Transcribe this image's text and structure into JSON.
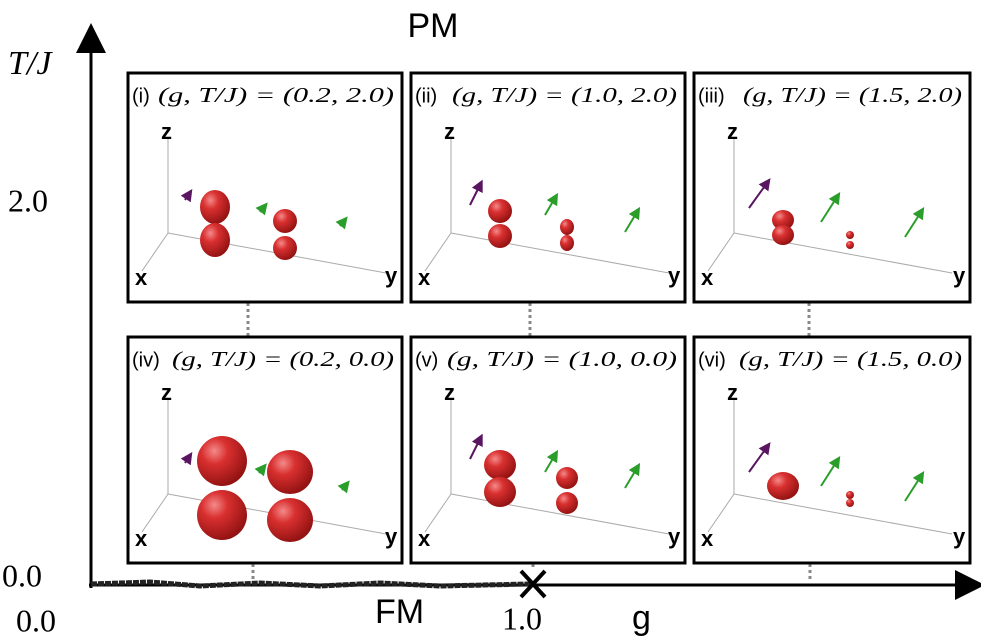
{
  "axes": {
    "top_label": "PM",
    "bottom_label": "FM",
    "y_label": "T/J",
    "x_label": "g",
    "y_ticks": [
      "2.0",
      "0.0"
    ],
    "x_ticks": [
      "0.0",
      "1.0"
    ]
  },
  "axis_labels_3d": {
    "z": "z",
    "x": "x",
    "y": "y"
  },
  "panels": [
    {
      "id": "(i)",
      "params": "(g, T/J) = (0.2, 2.0)"
    },
    {
      "id": "(ii)",
      "params": "(g, T/J) = (1.0, 2.0)"
    },
    {
      "id": "(iii)",
      "params": "(g, T/J) = (1.5, 2.0)"
    },
    {
      "id": "(iv)",
      "params": "(g, T/J) = (0.2, 0.0)"
    },
    {
      "id": "(v)",
      "params": "(g, T/J) = (1.0, 0.0)"
    },
    {
      "id": "(vi)",
      "params": "(g, T/J) = (1.5, 0.0)"
    }
  ]
}
